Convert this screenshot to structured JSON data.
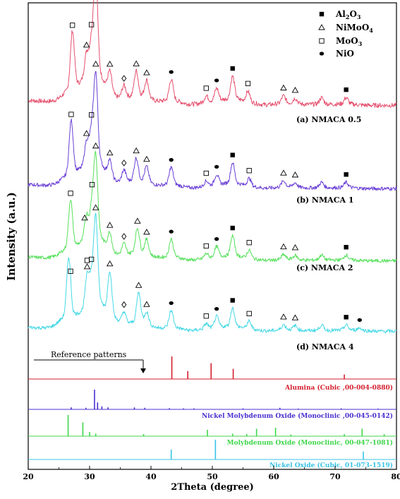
{
  "chart_data": {
    "type": "line",
    "title": "",
    "xlabel": "2Theta (degree)",
    "ylabel": "Intensity (a.u.)",
    "xlim": [
      20,
      80
    ],
    "xticks": [
      "20",
      "30",
      "40",
      "50",
      "60",
      "70",
      "80"
    ],
    "legend": {
      "placement": "top-right",
      "entries": [
        {
          "marker": "filled-square",
          "label": "Al2O3"
        },
        {
          "marker": "open-triangle",
          "label": "NiMoO4"
        },
        {
          "marker": "open-square",
          "label": "MoO3"
        },
        {
          "marker": "filled-circle",
          "label": "NiO"
        }
      ]
    },
    "series": [
      {
        "name": "(a) NMACA 0.5",
        "color": "#e5506e",
        "peaks": [
          [
            27.2,
            0.55
          ],
          [
            29.5,
            0.22
          ],
          [
            30.3,
            0.28
          ],
          [
            31.0,
            0.95
          ],
          [
            33.3,
            0.2
          ],
          [
            35.6,
            0.12
          ],
          [
            37.6,
            0.24
          ],
          [
            39.3,
            0.17
          ],
          [
            43.3,
            0.2
          ],
          [
            49.0,
            0.06
          ],
          [
            50.7,
            0.12
          ],
          [
            53.3,
            0.22
          ],
          [
            55.8,
            0.1
          ],
          [
            61.6,
            0.07
          ],
          [
            63.5,
            0.05
          ],
          [
            67.8,
            0.06
          ],
          [
            71.8,
            0.06
          ]
        ],
        "markers": [
          [
            27.2,
            "open-square"
          ],
          [
            29.5,
            "open-triangle"
          ],
          [
            30.3,
            "open-square"
          ],
          [
            31.0,
            "open-triangle"
          ],
          [
            33.3,
            "open-triangle"
          ],
          [
            35.6,
            "open-diamond"
          ],
          [
            37.6,
            "open-triangle"
          ],
          [
            39.3,
            "open-triangle"
          ],
          [
            43.3,
            "filled-circle"
          ],
          [
            49.0,
            "open-square"
          ],
          [
            50.7,
            "filled-circle"
          ],
          [
            53.3,
            "filled-square"
          ],
          [
            55.8,
            "open-square"
          ],
          [
            61.6,
            "open-triangle"
          ],
          [
            63.5,
            "open-triangle"
          ],
          [
            71.8,
            "filled-square"
          ]
        ]
      },
      {
        "name": "(b) NMACA 1",
        "color": "#6a3fd6",
        "peaks": [
          [
            27.0,
            0.62
          ],
          [
            29.5,
            0.25
          ],
          [
            30.3,
            0.32
          ],
          [
            31.0,
            1.0
          ],
          [
            33.3,
            0.2
          ],
          [
            35.6,
            0.14
          ],
          [
            37.6,
            0.26
          ],
          [
            39.3,
            0.18
          ],
          [
            43.3,
            0.2
          ],
          [
            49.0,
            0.06
          ],
          [
            50.7,
            0.12
          ],
          [
            53.3,
            0.24
          ],
          [
            56.0,
            0.09
          ],
          [
            61.6,
            0.07
          ],
          [
            63.5,
            0.05
          ],
          [
            67.8,
            0.06
          ],
          [
            71.8,
            0.06
          ]
        ],
        "markers": [
          [
            27.0,
            "open-square"
          ],
          [
            29.5,
            "open-triangle"
          ],
          [
            30.3,
            "open-square"
          ],
          [
            31.0,
            "open-triangle"
          ],
          [
            33.3,
            "open-triangle"
          ],
          [
            35.6,
            "open-diamond"
          ],
          [
            37.6,
            "open-triangle"
          ],
          [
            39.3,
            "open-triangle"
          ],
          [
            43.3,
            "filled-circle"
          ],
          [
            49.0,
            "open-square"
          ],
          [
            50.7,
            "filled-circle"
          ],
          [
            53.3,
            "filled-square"
          ],
          [
            56.0,
            "open-square"
          ],
          [
            61.6,
            "open-triangle"
          ],
          [
            63.5,
            "open-triangle"
          ],
          [
            71.8,
            "filled-square"
          ]
        ]
      },
      {
        "name": "(c) NMACA 2",
        "color": "#55e05a",
        "peaks": [
          [
            26.9,
            0.6
          ],
          [
            29.5,
            0.28
          ],
          [
            30.4,
            0.34
          ],
          [
            31.0,
            0.95
          ],
          [
            33.3,
            0.22
          ],
          [
            35.6,
            0.14
          ],
          [
            37.8,
            0.3
          ],
          [
            39.3,
            0.18
          ],
          [
            43.3,
            0.22
          ],
          [
            49.0,
            0.06
          ],
          [
            50.7,
            0.13
          ],
          [
            53.3,
            0.25
          ],
          [
            56.0,
            0.1
          ],
          [
            61.6,
            0.06
          ],
          [
            63.5,
            0.05
          ],
          [
            67.8,
            0.06
          ],
          [
            71.8,
            0.06
          ]
        ],
        "markers": [
          [
            26.9,
            "open-square"
          ],
          [
            29.2,
            "open-triangle"
          ],
          [
            30.4,
            "open-square"
          ],
          [
            31.0,
            "open-triangle"
          ],
          [
            33.3,
            "open-triangle"
          ],
          [
            35.6,
            "open-diamond"
          ],
          [
            37.8,
            "open-triangle"
          ],
          [
            39.3,
            "open-triangle"
          ],
          [
            43.3,
            "filled-circle"
          ],
          [
            49.0,
            "open-square"
          ],
          [
            50.7,
            "filled-circle"
          ],
          [
            53.3,
            "filled-square"
          ],
          [
            56.0,
            "open-square"
          ],
          [
            61.6,
            "open-triangle"
          ],
          [
            63.5,
            "open-triangle"
          ],
          [
            71.8,
            "filled-square"
          ]
        ]
      },
      {
        "name": "(d) NMACA 4",
        "color": "#45d8e6",
        "peaks": [
          [
            26.6,
            0.7
          ],
          [
            29.6,
            0.35
          ],
          [
            30.3,
            0.28
          ],
          [
            31.0,
            1.0
          ],
          [
            33.3,
            0.52
          ],
          [
            35.6,
            0.14
          ],
          [
            38.0,
            0.35
          ],
          [
            39.3,
            0.14
          ],
          [
            43.3,
            0.2
          ],
          [
            49.0,
            0.06
          ],
          [
            50.7,
            0.13
          ],
          [
            53.3,
            0.22
          ],
          [
            56.0,
            0.09
          ],
          [
            61.6,
            0.06
          ],
          [
            63.5,
            0.05
          ],
          [
            67.8,
            0.06
          ],
          [
            71.8,
            0.06
          ],
          [
            74.0,
            0.03
          ]
        ],
        "markers": [
          [
            26.9,
            "open-square"
          ],
          [
            29.6,
            "open-triangle"
          ],
          [
            29.6,
            "open-square"
          ],
          [
            30.3,
            "open-square"
          ],
          [
            31.0,
            "open-triangle"
          ],
          [
            33.3,
            "open-triangle"
          ],
          [
            35.6,
            "open-diamond"
          ],
          [
            38.0,
            "open-triangle"
          ],
          [
            39.3,
            "open-triangle"
          ],
          [
            43.3,
            "filled-circle"
          ],
          [
            49.0,
            "open-square"
          ],
          [
            50.7,
            "filled-circle"
          ],
          [
            53.3,
            "filled-square"
          ],
          [
            56.0,
            "open-square"
          ],
          [
            61.6,
            "open-triangle"
          ],
          [
            63.5,
            "open-triangle"
          ],
          [
            71.8,
            "filled-square"
          ],
          [
            74.0,
            "filled-circle"
          ]
        ]
      }
    ],
    "annotation": "Reference patterns",
    "references": [
      {
        "name": "Alumina (Cubic ,00-004-0880)",
        "color": "#d41f2e",
        "lines": [
          [
            43.4,
            1.0
          ],
          [
            46.0,
            0.35
          ],
          [
            49.8,
            0.7
          ],
          [
            53.4,
            0.45
          ],
          [
            71.5,
            0.2
          ]
        ]
      },
      {
        "name": "Nickel Molybdenum Oxide (Monoclinic ,00-045-0142)",
        "color": "#4a2fd0",
        "lines": [
          [
            27.0,
            0.1
          ],
          [
            29.4,
            0.08
          ],
          [
            30.8,
            1.0
          ],
          [
            31.3,
            0.35
          ],
          [
            32.0,
            0.15
          ],
          [
            33.0,
            0.1
          ],
          [
            37.3,
            0.1
          ],
          [
            39.0,
            0.08
          ],
          [
            43.0,
            0.06
          ],
          [
            45.3,
            0.05
          ],
          [
            47.0,
            0.05
          ],
          [
            55.0,
            0.05
          ],
          [
            61.0,
            0.08
          ],
          [
            64.0,
            0.04
          ],
          [
            71.0,
            0.05
          ],
          [
            77.0,
            0.04
          ]
        ]
      },
      {
        "name": "Molybdenum Oxide (Monoclinic, 00-047-1081)",
        "color": "#3fd64a",
        "lines": [
          [
            26.5,
            1.0
          ],
          [
            28.9,
            0.65
          ],
          [
            30.0,
            0.2
          ],
          [
            31.0,
            0.12
          ],
          [
            38.8,
            0.1
          ],
          [
            49.2,
            0.3
          ],
          [
            53.3,
            0.12
          ],
          [
            55.6,
            0.1
          ],
          [
            57.2,
            0.35
          ],
          [
            60.3,
            0.4
          ],
          [
            62.8,
            0.08
          ],
          [
            71.5,
            0.1
          ],
          [
            74.4,
            0.35
          ],
          [
            78.0,
            0.1
          ]
        ]
      },
      {
        "name": "Nickel Oxide (Cubic, 01-073-1519)",
        "color": "#39c4e6",
        "lines": [
          [
            43.3,
            0.5
          ],
          [
            50.5,
            1.0
          ],
          [
            74.6,
            0.4
          ]
        ]
      }
    ]
  }
}
